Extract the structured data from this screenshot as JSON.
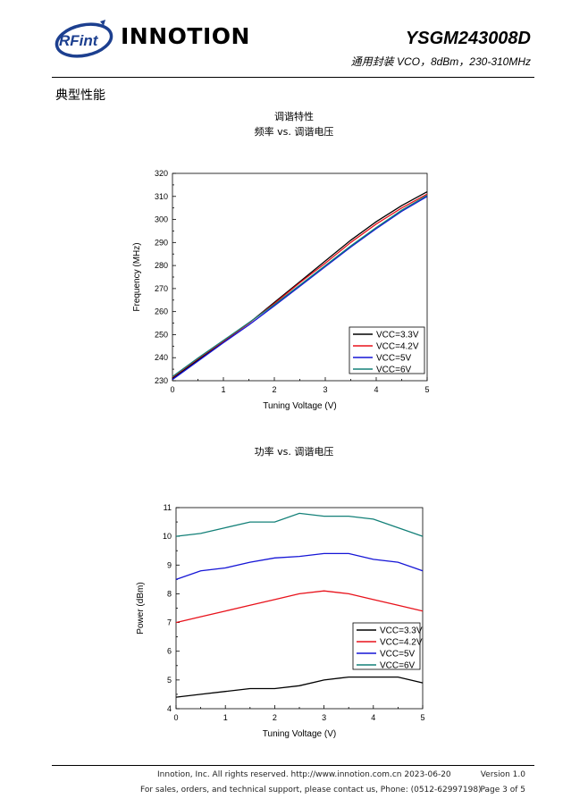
{
  "header": {
    "logo_text": "RFint",
    "brand": "INNOTION",
    "part_number": "YSGM243008D",
    "subtitle": "通用封装 VCO，8dBm，230-310MHz"
  },
  "section_title": "典型性能",
  "colors": {
    "vcc33": "#000000",
    "vcc42": "#e8121b",
    "vcc5": "#1515d6",
    "vcc6": "#138078",
    "logo": "#1c3f8f"
  },
  "chart_data": [
    {
      "type": "line",
      "title": "调谐特性",
      "subtitle": "频率 vs. 调谐电压",
      "xlabel": "Tuning Voltage (V)",
      "ylabel": "Frequency (MHz)",
      "xlim": [
        0,
        5
      ],
      "ylim": [
        230,
        320
      ],
      "xticks": [
        "0",
        "1",
        "2",
        "3",
        "4",
        "5"
      ],
      "yticks": [
        "230",
        "240",
        "250",
        "260",
        "270",
        "280",
        "290",
        "300",
        "310",
        "320"
      ],
      "legend": "bottom-right",
      "grid": false,
      "x": [
        0,
        0.5,
        1,
        1.5,
        2,
        2.5,
        3,
        3.5,
        4,
        4.5,
        5
      ],
      "series": [
        {
          "name": "VCC=3.3V",
          "color": "#000000",
          "values": [
            231.0,
            239.0,
            247.0,
            255.0,
            264.0,
            273.0,
            282.0,
            291.0,
            299.0,
            306.0,
            312.0
          ]
        },
        {
          "name": "VCC=4.2V",
          "color": "#e8121b",
          "values": [
            231.5,
            239.5,
            247.2,
            255.0,
            263.5,
            272.5,
            281.0,
            290.0,
            298.0,
            305.0,
            311.0
          ]
        },
        {
          "name": "VCC=5V",
          "color": "#1515d6",
          "values": [
            230.5,
            238.5,
            246.5,
            254.2,
            262.5,
            271.0,
            279.5,
            288.0,
            296.0,
            303.5,
            310.0
          ]
        },
        {
          "name": "VCC=6V",
          "color": "#138078",
          "values": [
            231.8,
            239.8,
            247.5,
            255.2,
            263.0,
            271.5,
            280.0,
            288.5,
            296.5,
            304.0,
            310.5
          ]
        }
      ]
    },
    {
      "type": "line",
      "title": "功率 vs. 调谐电压",
      "xlabel": "Tuning Voltage (V)",
      "ylabel": "Power (dBm)",
      "xlim": [
        0,
        5
      ],
      "ylim": [
        4,
        11
      ],
      "xticks": [
        "0",
        "1",
        "2",
        "3",
        "4",
        "5"
      ],
      "yticks": [
        "4",
        "5",
        "6",
        "7",
        "8",
        "9",
        "10",
        "11"
      ],
      "legend": "bottom-right",
      "grid": false,
      "x": [
        0,
        0.5,
        1,
        1.5,
        2,
        2.5,
        3,
        3.5,
        4,
        4.5,
        5
      ],
      "series": [
        {
          "name": "VCC=3.3V",
          "color": "#000000",
          "values": [
            4.4,
            4.5,
            4.6,
            4.7,
            4.7,
            4.8,
            5.0,
            5.1,
            5.1,
            5.1,
            4.9
          ]
        },
        {
          "name": "VCC=4.2V",
          "color": "#e8121b",
          "values": [
            7.0,
            7.2,
            7.4,
            7.6,
            7.8,
            8.0,
            8.1,
            8.0,
            7.8,
            7.6,
            7.4
          ]
        },
        {
          "name": "VCC=5V",
          "color": "#1515d6",
          "values": [
            8.5,
            8.8,
            8.9,
            9.1,
            9.25,
            9.3,
            9.4,
            9.4,
            9.2,
            9.1,
            8.8
          ]
        },
        {
          "name": "VCC=6V",
          "color": "#138078",
          "values": [
            10.0,
            10.1,
            10.3,
            10.5,
            10.5,
            10.8,
            10.7,
            10.7,
            10.6,
            10.3,
            10.0
          ]
        }
      ]
    }
  ],
  "footer": {
    "line1": "Innotion, Inc. All rights reserved. http://www.innotion.com.cn  2023-06-20",
    "version": "Version 1.0",
    "line2": "For sales, orders, and technical support, please contact us, Phone: (0512-62997198)",
    "page": "Page 3 of 5"
  }
}
